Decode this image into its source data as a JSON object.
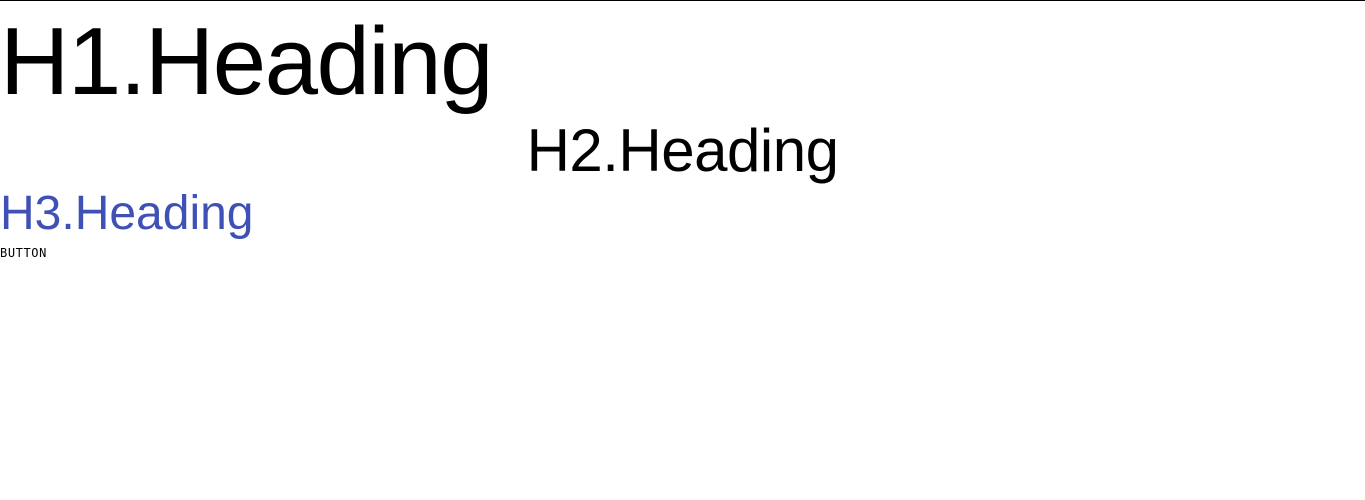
{
  "headings": {
    "h1": "H1.Heading",
    "h2": "H2.Heading",
    "h3": "H3.Heading"
  },
  "button": {
    "label": "BUTTON"
  },
  "colors": {
    "text_primary": "#000000",
    "h3_color": "#3f51b5",
    "background": "#ffffff"
  }
}
